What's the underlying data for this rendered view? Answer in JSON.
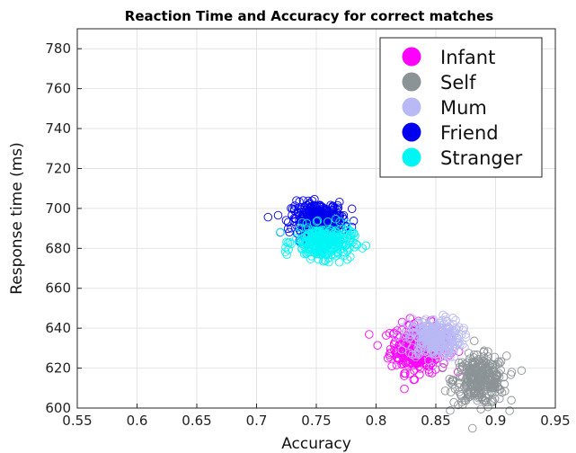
{
  "chart_data": {
    "type": "scatter",
    "title": "Reaction Time and Accuracy for correct matches",
    "xlabel": "Accuracy",
    "ylabel": "Response time (ms)",
    "xlim": [
      0.55,
      0.95
    ],
    "ylim": [
      600,
      790
    ],
    "xticks": [
      "0.55",
      "0.6",
      "0.65",
      "0.7",
      "0.75",
      "0.8",
      "0.85",
      "0.9",
      "0.95"
    ],
    "yticks": [
      "600",
      "620",
      "640",
      "660",
      "680",
      "700",
      "720",
      "740",
      "760",
      "780"
    ],
    "grid": true,
    "legend_position": "top-right",
    "marker": "open-circle",
    "series": [
      {
        "name": "Infant",
        "color": "#ff00ff",
        "center_x": 0.836,
        "center_y": 630,
        "spread_x": 0.012,
        "spread_y": 6,
        "n_points": 300
      },
      {
        "name": "Self",
        "color": "#8c9396",
        "center_x": 0.887,
        "center_y": 614,
        "spread_x": 0.011,
        "spread_y": 6,
        "n_points": 300
      },
      {
        "name": "Mum",
        "color": "#b9b9f5",
        "center_x": 0.849,
        "center_y": 635,
        "spread_x": 0.011,
        "spread_y": 5,
        "n_points": 300
      },
      {
        "name": "Friend",
        "color": "#0000ee",
        "center_x": 0.751,
        "center_y": 695,
        "spread_x": 0.011,
        "spread_y": 4,
        "n_points": 300
      },
      {
        "name": "Stranger",
        "color": "#00f5f5",
        "center_x": 0.756,
        "center_y": 683,
        "spread_x": 0.012,
        "spread_y": 4,
        "n_points": 300
      }
    ]
  }
}
